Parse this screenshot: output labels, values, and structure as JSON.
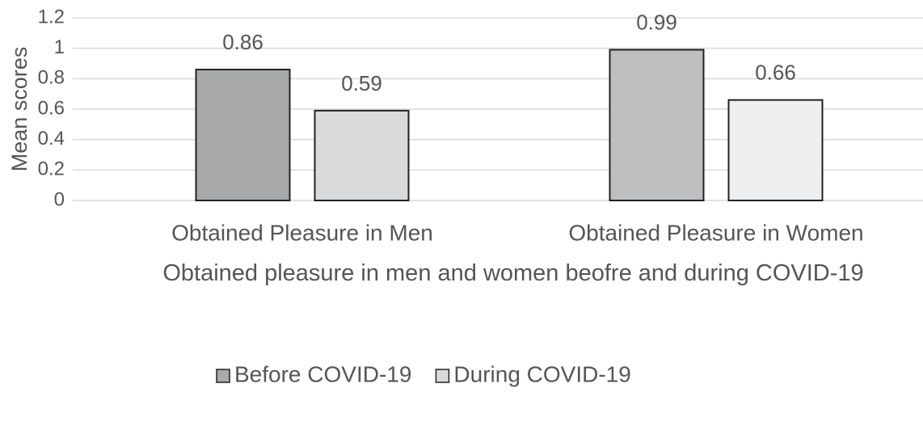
{
  "chart_data": {
    "type": "bar",
    "categories": [
      "Obtained Pleasure in Men",
      "Obtained Pleasure in Women"
    ],
    "series": [
      {
        "name": "Before COVID-19",
        "colors": [
          "#a8a9ab",
          "#bebfc1"
        ],
        "values": [
          0.86,
          0.99
        ]
      },
      {
        "name": "During COVID-19",
        "colors": [
          "#d9dadb",
          "#eeeff0"
        ],
        "values": [
          0.59,
          0.66
        ]
      }
    ],
    "y_label": "Mean scores",
    "x_label": "Obtained pleasure in men and women beofre and during COVID-19",
    "ylim": [
      0,
      1.2
    ],
    "yticks": [
      0,
      0.2,
      0.4,
      0.6,
      0.8,
      1,
      1.2
    ],
    "grid": true,
    "legend": "bottom"
  }
}
